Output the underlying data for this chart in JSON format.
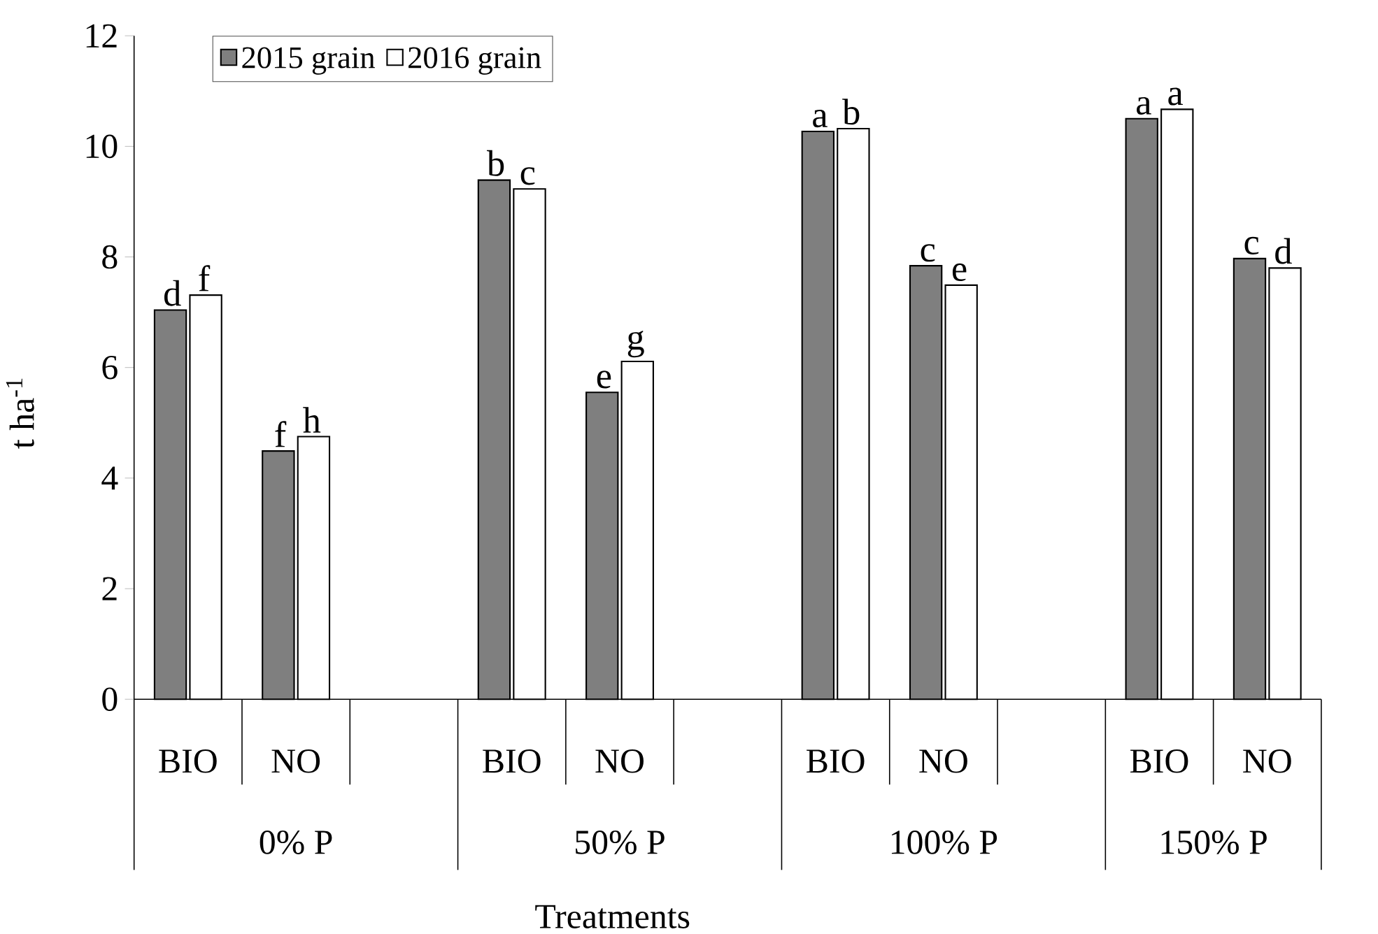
{
  "chart_data": {
    "type": "bar",
    "xlabel": "Treatments",
    "ylabel": "t ha$^{-1}$",
    "categories": [
      "BIO",
      "NO",
      null,
      "BIO",
      "NO",
      null,
      "BIO",
      "NO",
      null,
      "BIO",
      "NO"
    ],
    "series": [
      {
        "name": "2015 grain",
        "color": "#7f7f7f",
        "values": [
          7.04,
          4.49,
          null,
          9.39,
          5.55,
          null,
          10.27,
          7.84,
          null,
          10.5,
          7.97
        ]
      },
      {
        "name": "2016 grain",
        "color": "#ffffff",
        "values": [
          7.31,
          4.75,
          null,
          9.23,
          6.11,
          null,
          10.32,
          7.49,
          null,
          10.67,
          7.8
        ]
      }
    ],
    "ylim": [
      0,
      12
    ],
    "yticks": [
      0,
      2,
      4,
      6,
      8,
      10,
      12
    ],
    "grid": false,
    "legend": "top left",
    "annotations": [
      "d",
      "f",
      "f",
      "h",
      "b",
      "c",
      "e",
      "g",
      "a",
      "b",
      "c",
      "e",
      "a",
      "a",
      "c",
      "d",
      "0% P",
      "50% P",
      "100% P",
      "150% P"
    ]
  }
}
